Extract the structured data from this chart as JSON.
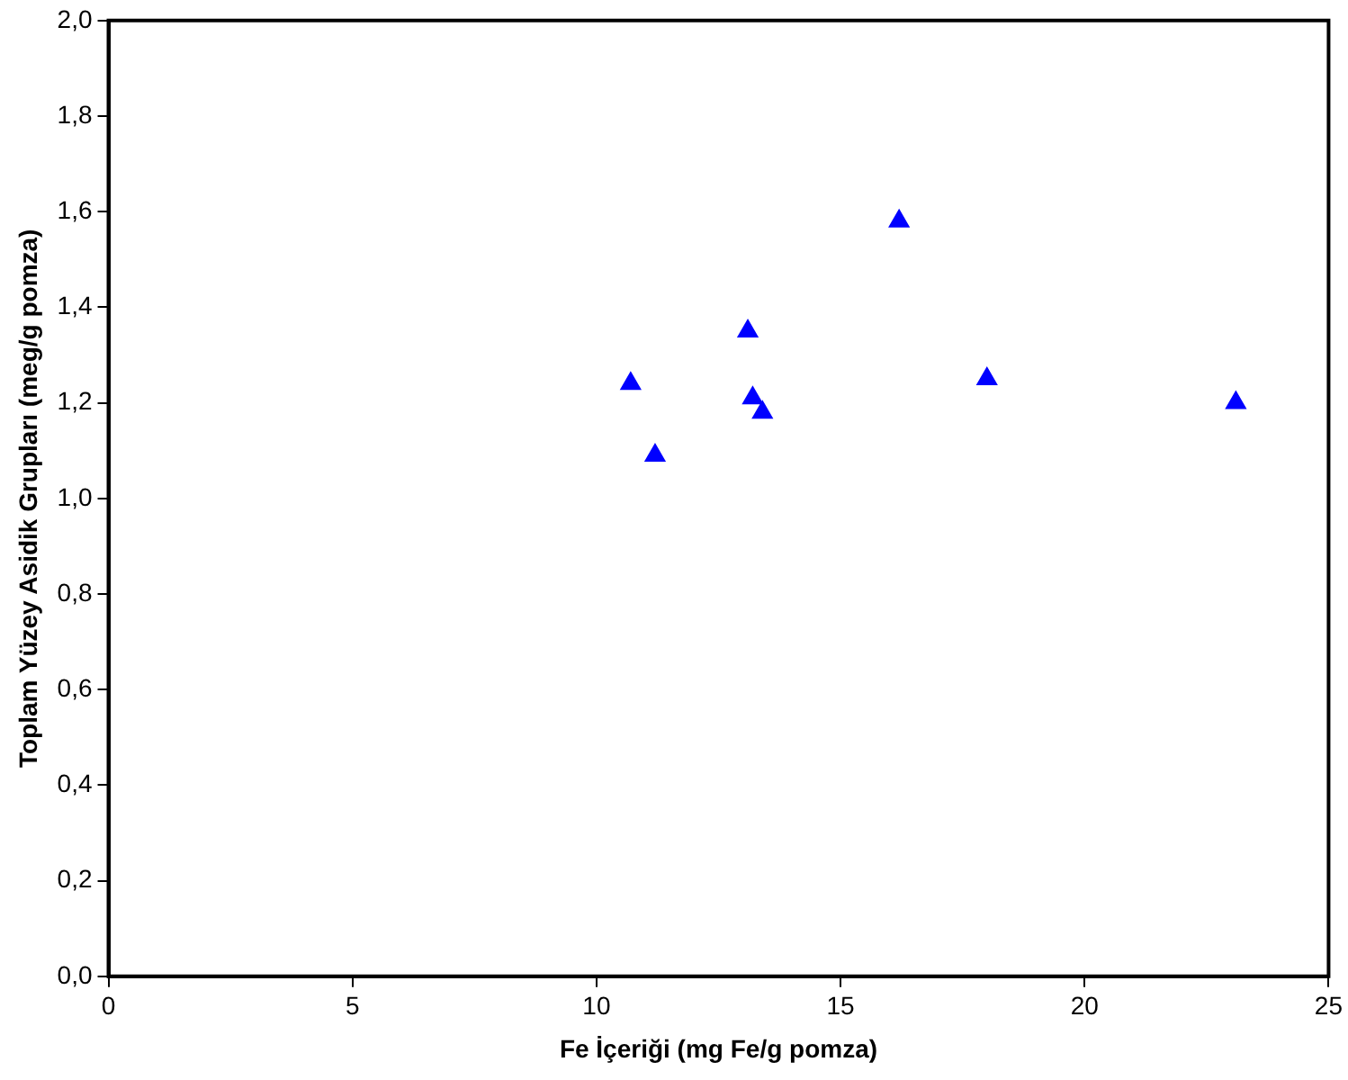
{
  "chart_data": {
    "type": "scatter",
    "xlabel": "Fe İçeriği (mg Fe/g pomza)",
    "ylabel": "Toplam Yüzey Asidik Grupları (meg/g pomza)",
    "x": [
      10.7,
      11.2,
      13.1,
      13.2,
      13.4,
      16.2,
      18.0,
      23.1
    ],
    "values": [
      1.24,
      1.09,
      1.35,
      1.21,
      1.18,
      1.58,
      1.25,
      1.2
    ],
    "color": "#0000ff",
    "marker": "triangle",
    "grid": false,
    "legend": false,
    "xlim": [
      0,
      25
    ],
    "xticks": [
      0,
      5,
      10,
      15,
      20,
      25
    ],
    "ylim": [
      0,
      2
    ],
    "yticks": [
      {
        "value": 0,
        "label": "0,0"
      },
      {
        "value": 0.2,
        "label": "0,2"
      },
      {
        "value": 0.4,
        "label": "0,4"
      },
      {
        "value": 0.6,
        "label": "0,6"
      },
      {
        "value": 0.8,
        "label": "0,8"
      },
      {
        "value": 1.0,
        "label": "1,0"
      },
      {
        "value": 1.2,
        "label": "1,2"
      },
      {
        "value": 1.4,
        "label": "1,4"
      },
      {
        "value": 1.6,
        "label": "1,6"
      },
      {
        "value": 1.8,
        "label": "1,8"
      },
      {
        "value": 2.0,
        "label": "2,0"
      }
    ]
  }
}
